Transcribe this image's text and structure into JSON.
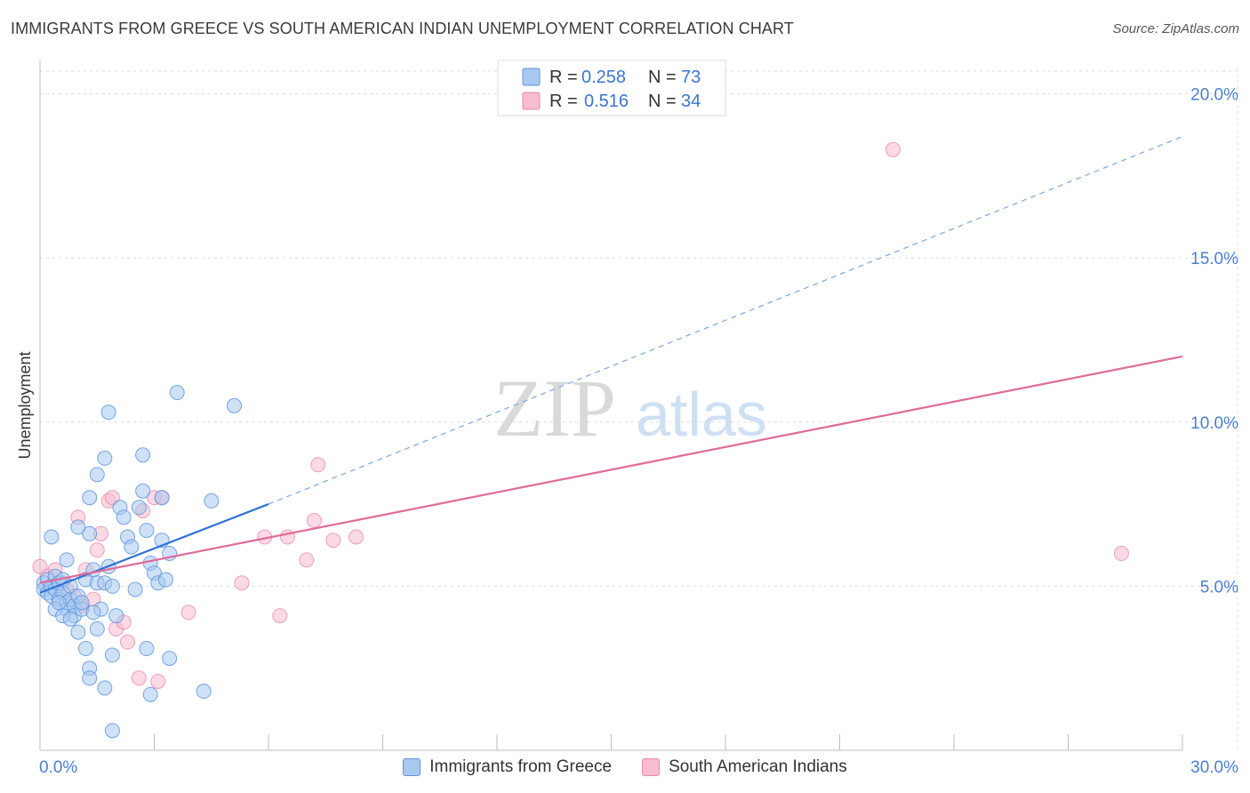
{
  "title": "IMMIGRANTS FROM GREECE VS SOUTH AMERICAN INDIAN UNEMPLOYMENT CORRELATION CHART",
  "source": "Source: ZipAtlas.com",
  "watermark": {
    "zip": "ZIP",
    "atlas": "atlas"
  },
  "legend": {
    "rows": [
      {
        "r_label": "R =",
        "r_value": "0.258",
        "n_label": "N =",
        "n_value": "73"
      },
      {
        "r_label": "R =",
        "r_value": "0.516",
        "n_label": "N =",
        "n_value": "34"
      }
    ]
  },
  "bottom_legend": [
    "Immigrants from Greece",
    "South American Indians"
  ],
  "colors": {
    "blue_fill": "#a8c8f0",
    "blue_stroke": "#5f95de",
    "blue_line": "#2f73d6",
    "pink_fill": "#f7bcd0",
    "pink_stroke": "#e88aab",
    "pink_line": "#e06a98",
    "accent_text": "#4a7fd0",
    "grid": "#dcdcdc"
  },
  "chart_data": {
    "type": "scatter",
    "title": "IMMIGRANTS FROM GREECE VS SOUTH AMERICAN INDIAN UNEMPLOYMENT CORRELATION CHART",
    "xlabel": "",
    "ylabel": "Unemployment",
    "xlim": [
      0,
      30
    ],
    "ylim": [
      0,
      20.8
    ],
    "x_tick_labels": [
      "0.0%",
      "30.0%"
    ],
    "y_ticks": [
      5,
      10,
      15,
      20
    ],
    "y_tick_labels": [
      "5.0%",
      "10.0%",
      "15.0%",
      "20.0%"
    ],
    "grid": true,
    "series": [
      {
        "name": "Immigrants from Greece",
        "color": "blue",
        "r": 0.258,
        "n": 73,
        "points": [
          [
            0.1,
            5.1
          ],
          [
            0.1,
            4.9
          ],
          [
            0.2,
            5.2
          ],
          [
            0.2,
            4.8
          ],
          [
            0.3,
            5.0
          ],
          [
            0.3,
            4.7
          ],
          [
            0.4,
            5.3
          ],
          [
            0.4,
            4.9
          ],
          [
            0.5,
            5.1
          ],
          [
            0.5,
            4.6
          ],
          [
            0.6,
            4.8
          ],
          [
            0.6,
            5.2
          ],
          [
            0.7,
            4.5
          ],
          [
            0.7,
            4.3
          ],
          [
            0.8,
            4.6
          ],
          [
            0.8,
            5.0
          ],
          [
            0.9,
            4.4
          ],
          [
            0.9,
            4.1
          ],
          [
            1.0,
            4.7
          ],
          [
            1.0,
            3.6
          ],
          [
            1.1,
            4.3
          ],
          [
            1.1,
            4.5
          ],
          [
            1.2,
            5.2
          ],
          [
            1.2,
            3.1
          ],
          [
            1.3,
            6.6
          ],
          [
            1.4,
            5.5
          ],
          [
            1.5,
            5.1
          ],
          [
            1.5,
            3.7
          ],
          [
            1.6,
            4.3
          ],
          [
            1.7,
            5.1
          ],
          [
            1.8,
            5.6
          ],
          [
            1.9,
            5.0
          ],
          [
            2.0,
            4.1
          ],
          [
            2.1,
            7.4
          ],
          [
            2.2,
            7.1
          ],
          [
            2.3,
            6.5
          ],
          [
            2.4,
            6.2
          ],
          [
            2.5,
            4.9
          ],
          [
            2.6,
            7.4
          ],
          [
            2.7,
            9.0
          ],
          [
            2.8,
            6.7
          ],
          [
            2.9,
            5.7
          ],
          [
            3.0,
            5.4
          ],
          [
            3.1,
            5.1
          ],
          [
            3.2,
            7.7
          ],
          [
            3.3,
            5.2
          ],
          [
            0.3,
            6.5
          ],
          [
            0.7,
            5.8
          ],
          [
            1.0,
            6.8
          ],
          [
            1.3,
            7.7
          ],
          [
            1.5,
            8.4
          ],
          [
            1.7,
            8.9
          ],
          [
            1.8,
            10.3
          ],
          [
            3.6,
            10.9
          ],
          [
            5.1,
            10.5
          ],
          [
            4.5,
            7.6
          ],
          [
            3.2,
            6.4
          ],
          [
            3.4,
            6.0
          ],
          [
            2.7,
            7.9
          ],
          [
            1.9,
            2.9
          ],
          [
            2.8,
            3.1
          ],
          [
            3.4,
            2.8
          ],
          [
            1.3,
            2.5
          ],
          [
            1.3,
            2.2
          ],
          [
            1.7,
            1.9
          ],
          [
            2.9,
            1.7
          ],
          [
            4.3,
            1.8
          ],
          [
            1.9,
            0.6
          ],
          [
            0.4,
            4.3
          ],
          [
            0.6,
            4.1
          ],
          [
            0.8,
            4.0
          ],
          [
            1.4,
            4.2
          ],
          [
            0.5,
            4.5
          ]
        ],
        "trend": {
          "x0": 0,
          "y0": 4.8,
          "x1": 6.0,
          "y1": 7.5,
          "dashed_to_x": 30,
          "dashed_to_y": 18.7
        }
      },
      {
        "name": "South American Indians",
        "color": "pink",
        "r": 0.516,
        "n": 34,
        "points": [
          [
            0.0,
            5.6
          ],
          [
            0.2,
            5.3
          ],
          [
            0.4,
            5.5
          ],
          [
            0.6,
            5.1
          ],
          [
            0.7,
            4.9
          ],
          [
            0.9,
            4.7
          ],
          [
            1.0,
            7.1
          ],
          [
            1.1,
            4.4
          ],
          [
            1.2,
            5.5
          ],
          [
            1.4,
            4.6
          ],
          [
            1.5,
            6.1
          ],
          [
            1.6,
            6.6
          ],
          [
            1.8,
            7.6
          ],
          [
            1.9,
            7.7
          ],
          [
            2.0,
            3.7
          ],
          [
            2.2,
            3.9
          ],
          [
            2.3,
            3.3
          ],
          [
            2.6,
            2.2
          ],
          [
            2.7,
            7.3
          ],
          [
            3.0,
            7.7
          ],
          [
            3.1,
            2.1
          ],
          [
            3.2,
            7.7
          ],
          [
            3.9,
            4.2
          ],
          [
            5.3,
            5.1
          ],
          [
            5.9,
            6.5
          ],
          [
            6.3,
            4.1
          ],
          [
            6.5,
            6.5
          ],
          [
            7.0,
            5.8
          ],
          [
            7.2,
            7.0
          ],
          [
            7.3,
            8.7
          ],
          [
            7.7,
            6.4
          ],
          [
            8.3,
            6.5
          ],
          [
            22.4,
            18.3
          ],
          [
            28.4,
            6.0
          ]
        ],
        "trend": {
          "x0": 0,
          "y0": 5.1,
          "x1": 30,
          "y1": 12.0
        }
      }
    ]
  }
}
